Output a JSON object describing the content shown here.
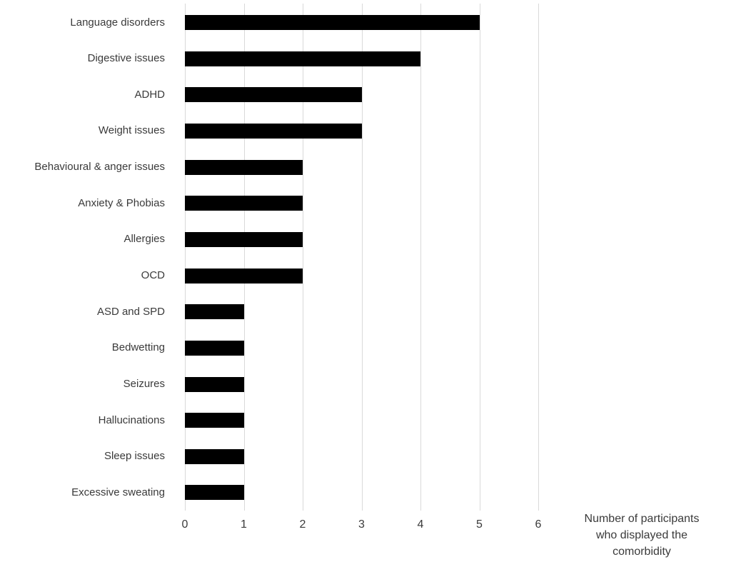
{
  "chart_data": {
    "type": "bar",
    "orientation": "horizontal",
    "title": "",
    "categories": [
      "Language disorders",
      "Digestive issues",
      "ADHD",
      "Weight issues",
      "Behavioural & anger issues",
      "Anxiety & Phobias",
      "Allergies",
      "OCD",
      "ASD and SPD",
      "Bedwetting",
      "Seizures",
      "Hallucinations",
      "Sleep issues",
      "Excessive sweating"
    ],
    "values": [
      5,
      4,
      3,
      3,
      2,
      2,
      2,
      2,
      1,
      1,
      1,
      1,
      1,
      1
    ],
    "xlabel": "Number of participants who displayed the comorbidity",
    "xlabel_lines": [
      "Number of participants",
      "who displayed the",
      "comorbidity"
    ],
    "xlim": [
      0,
      6
    ],
    "xticks": [
      "0",
      "1",
      "2",
      "3",
      "4",
      "5",
      "6"
    ],
    "grid": "vertical-only",
    "legend_position": "none",
    "colors": {
      "bar": "#000000",
      "gridline": "#d9d9d9",
      "text": "#3a3a3a",
      "background": "#ffffff"
    }
  }
}
